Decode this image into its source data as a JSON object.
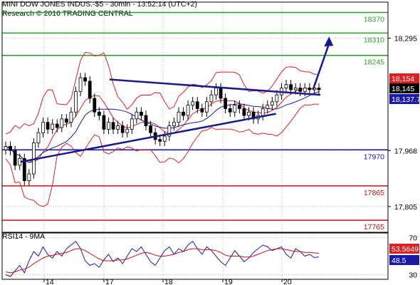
{
  "header": {
    "title": "MINI DOW JONES INDUS.-$5 - 30min - 13:52:14 (UTC+2)",
    "subtitle": "Research © 2016 TRADING CENTRAL"
  },
  "chart_data": [
    {
      "type": "candlestick",
      "title": "MINI DOW JONES INDUS.-$5 - 30min - 13:52:14 (UTC+2)",
      "x_tick_labels": [
        "14",
        "17",
        "18",
        "19",
        "20"
      ],
      "y_ticks": [
        "18,295",
        "17,968",
        "17,805"
      ],
      "ylim": [
        17730,
        18400
      ],
      "price_series": [
        17980,
        17968,
        17925,
        17945,
        17880,
        17900,
        17990,
        18020,
        18050,
        18030,
        18045,
        18035,
        18060,
        18050,
        18080,
        18140,
        18180,
        18170,
        18120,
        18080,
        18070,
        18030,
        18050,
        18030,
        18040,
        18020,
        18030,
        18060,
        18080,
        18070,
        18040,
        18020,
        18000,
        17995,
        18010,
        18040,
        18050,
        18080,
        18070,
        18100,
        18110,
        18090,
        18080,
        18110,
        18130,
        18150,
        18120,
        18090,
        18080,
        18100,
        18090,
        18070,
        18080,
        18060,
        18070,
        18090,
        18100,
        18110,
        18130,
        18150,
        18160,
        18145,
        18150,
        18140,
        18150,
        18145,
        18150,
        18145
      ],
      "last_price": "18,145",
      "upper_band_value": "18,154",
      "lower_band_value": "18,137.7",
      "resistance_levels": [
        {
          "label": "18370",
          "value": 18370,
          "color": "#2e9d2e"
        },
        {
          "label": "18310",
          "value": 18310,
          "color": "#2e9d2e"
        },
        {
          "label": "18245",
          "value": 18245,
          "color": "#2e9d2e"
        }
      ],
      "pivot_level": {
        "label": "17970",
        "value": 17970,
        "color": "#1010c8"
      },
      "support_levels": [
        {
          "label": "17865",
          "value": 17865,
          "color": "#d01010"
        },
        {
          "label": "17765",
          "value": 17765,
          "color": "#d01010"
        }
      ],
      "trendline_upper": {
        "start": [
          "16.6",
          18175
        ],
        "end": [
          "20.65",
          18130
        ]
      },
      "trendline_lower": {
        "start": [
          "13.6",
          17935
        ],
        "end": [
          "19.9",
          18075
        ]
      },
      "forecast_arrow": {
        "start": [
          "20.55",
          18145
        ],
        "end": [
          "20.75",
          18300
        ]
      },
      "colors": {
        "price": "#000000",
        "bands": "#e02020",
        "ma": "#1a1aa8",
        "trend": "#1a1a8c"
      }
    },
    {
      "type": "line",
      "title": "RSI14 - 9MA",
      "ylim": [
        25,
        75
      ],
      "y_ticks": [
        "70",
        "30"
      ],
      "series": [
        {
          "name": "RSI14",
          "color": "#1a1aa8",
          "values": [
            30,
            28,
            34,
            40,
            32,
            45,
            55,
            50,
            60,
            52,
            48,
            55,
            50,
            58,
            62,
            66,
            58,
            45,
            40,
            42,
            38,
            46,
            52,
            44,
            48,
            42,
            50,
            58,
            55,
            60,
            52,
            44,
            40,
            48,
            56,
            60,
            52,
            58,
            55,
            62,
            66,
            58,
            52,
            60,
            56,
            50,
            44,
            40,
            48,
            56,
            50,
            44,
            48,
            54,
            58,
            62,
            60,
            56,
            58,
            60,
            52,
            48,
            58,
            55,
            50,
            52,
            48.5,
            49
          ]
        },
        {
          "name": "9MA",
          "color": "#d01010",
          "values": [
            33,
            32,
            33,
            35,
            36,
            38,
            42,
            45,
            48,
            50,
            51,
            52,
            53,
            54,
            56,
            58,
            58,
            56,
            53,
            50,
            47,
            45,
            45,
            45,
            46,
            46,
            47,
            49,
            51,
            53,
            54,
            53,
            51,
            50,
            50,
            51,
            52,
            54,
            55,
            57,
            58,
            58,
            57,
            57,
            57,
            56,
            54,
            51,
            50,
            50,
            50,
            49,
            49,
            50,
            52,
            54,
            56,
            57,
            58,
            58,
            57,
            56,
            55,
            55,
            54,
            54,
            53.5,
            53
          ]
        }
      ],
      "value_labels": [
        "53.5649",
        "48.5"
      ]
    }
  ]
}
